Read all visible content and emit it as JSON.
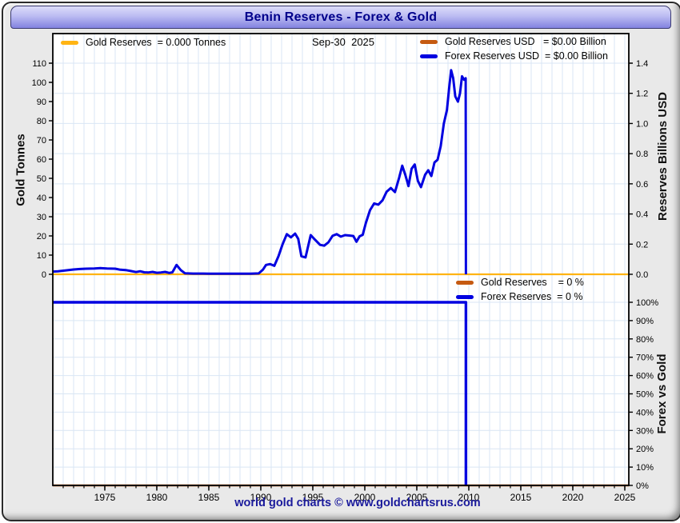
{
  "header": {
    "title": "Benin Reserves - Forex & Gold"
  },
  "footer": {
    "credit": "world gold charts © www.goldchartsrus.com"
  },
  "colors": {
    "forex_blue": "#0000E0",
    "gold": "#FFB414",
    "gold_usd_orange": "#C55A11",
    "title_navy": "#00008B",
    "grid": "#D9E6F4",
    "axis": "#000000",
    "plot_bg": "#FFFFFF",
    "page_bg": "#E9E9E9"
  },
  "chart_data": {
    "type": "line",
    "title": "Benin Reserves - Forex & Gold",
    "as_of_label": "Sep-30  2025",
    "x_axis": {
      "range": [
        1970,
        2025.4
      ],
      "minor_tick_step": 1,
      "major_ticks": [
        {
          "v": 1975,
          "label": "1975"
        },
        {
          "v": 1980,
          "label": "1980"
        },
        {
          "v": 1985,
          "label": "1985"
        },
        {
          "v": 1990,
          "label": "1990"
        },
        {
          "v": 1995,
          "label": "1995"
        },
        {
          "v": 2000,
          "label": "2000"
        },
        {
          "v": 2005,
          "label": "2005"
        },
        {
          "v": 2010,
          "label": "2010"
        },
        {
          "v": 2015,
          "label": "2015"
        },
        {
          "v": 2020,
          "label": "2020"
        },
        {
          "v": 2025,
          "label": "2025"
        }
      ]
    },
    "top_panel": {
      "left_axis": {
        "title": "Gold Tonnes",
        "range": [
          0,
          117
        ],
        "ticks": [
          {
            "v": 0,
            "label": "0"
          },
          {
            "v": 10,
            "label": "10"
          },
          {
            "v": 20,
            "label": "20"
          },
          {
            "v": 30,
            "label": "30"
          },
          {
            "v": 40,
            "label": "40"
          },
          {
            "v": 50,
            "label": "50"
          },
          {
            "v": 60,
            "label": "60"
          },
          {
            "v": 70,
            "label": "70"
          },
          {
            "v": 80,
            "label": "80"
          },
          {
            "v": 90,
            "label": "90"
          },
          {
            "v": 100,
            "label": "100"
          },
          {
            "v": 110,
            "label": "110"
          }
        ]
      },
      "right_axis": {
        "title": "Reserves Billions USD",
        "range": [
          0,
          1.596
        ],
        "ticks": [
          {
            "v": 0.0,
            "label": "0.0"
          },
          {
            "v": 0.2,
            "label": "0.2"
          },
          {
            "v": 0.4,
            "label": "0.4"
          },
          {
            "v": 0.6,
            "label": "0.6"
          },
          {
            "v": 0.8,
            "label": "0.8"
          },
          {
            "v": 1.0,
            "label": "1.0"
          },
          {
            "v": 1.2,
            "label": "1.2"
          },
          {
            "v": 1.4,
            "label": "1.4"
          }
        ]
      },
      "legend_left": {
        "swatch_color": "#FFB414",
        "label": "Gold Reserves  = 0.000 Tonnes"
      },
      "legend_right": [
        {
          "swatch_color": "#C55A11",
          "label": "Gold Reserves USD   = $0.00 Billion"
        },
        {
          "swatch_color": "#0000E0",
          "label": "Forex Reserves USD  = $0.00 Billion"
        }
      ],
      "series": [
        {
          "name": "Gold Reserves USD",
          "color": "#C55A11",
          "width": 2,
          "points": [
            [
              1970,
              0
            ],
            [
              2025.4,
              0
            ]
          ]
        },
        {
          "name": "Gold Reserves Tonnes",
          "color": "#FFB414",
          "width": 2.2,
          "points": [
            [
              1970,
              0
            ],
            [
              2025.4,
              0
            ]
          ]
        },
        {
          "name": "Forex Reserves USD",
          "color": "#0000E0",
          "width": 3,
          "points": [
            [
              1970,
              0.018
            ],
            [
              1970.5,
              0.02
            ],
            [
              1971,
              0.024
            ],
            [
              1971.5,
              0.028
            ],
            [
              1972,
              0.032
            ],
            [
              1972.6,
              0.035
            ],
            [
              1973.2,
              0.037
            ],
            [
              1974,
              0.038
            ],
            [
              1974.6,
              0.041
            ],
            [
              1975.2,
              0.038
            ],
            [
              1976,
              0.037
            ],
            [
              1976.5,
              0.03
            ],
            [
              1977,
              0.028
            ],
            [
              1977.5,
              0.022
            ],
            [
              1978,
              0.015
            ],
            [
              1978.4,
              0.02
            ],
            [
              1978.8,
              0.013
            ],
            [
              1979.2,
              0.012
            ],
            [
              1979.6,
              0.016
            ],
            [
              1980,
              0.01
            ],
            [
              1980.4,
              0.012
            ],
            [
              1980.8,
              0.016
            ],
            [
              1981.2,
              0.009
            ],
            [
              1981.5,
              0.013
            ],
            [
              1981.9,
              0.062
            ],
            [
              1982.3,
              0.028
            ],
            [
              1982.7,
              0.007
            ],
            [
              1983.5,
              0.005
            ],
            [
              1985,
              0.004
            ],
            [
              1987,
              0.004
            ],
            [
              1989,
              0.004
            ],
            [
              1989.8,
              0.006
            ],
            [
              1990.2,
              0.03
            ],
            [
              1990.5,
              0.062
            ],
            [
              1990.9,
              0.068
            ],
            [
              1991.3,
              0.056
            ],
            [
              1991.7,
              0.12
            ],
            [
              1992.1,
              0.2
            ],
            [
              1992.5,
              0.266
            ],
            [
              1992.9,
              0.245
            ],
            [
              1993.3,
              0.27
            ],
            [
              1993.6,
              0.235
            ],
            [
              1993.9,
              0.12
            ],
            [
              1994.3,
              0.112
            ],
            [
              1994.8,
              0.26
            ],
            [
              1995.2,
              0.23
            ],
            [
              1995.7,
              0.195
            ],
            [
              1996.1,
              0.19
            ],
            [
              1996.5,
              0.212
            ],
            [
              1996.9,
              0.255
            ],
            [
              1997.3,
              0.266
            ],
            [
              1997.7,
              0.25
            ],
            [
              1998.1,
              0.26
            ],
            [
              1998.5,
              0.257
            ],
            [
              1998.9,
              0.254
            ],
            [
              1999.2,
              0.216
            ],
            [
              1999.5,
              0.252
            ],
            [
              1999.8,
              0.262
            ],
            [
              2000.1,
              0.34
            ],
            [
              2000.5,
              0.425
            ],
            [
              2000.9,
              0.47
            ],
            [
              2001.3,
              0.462
            ],
            [
              2001.7,
              0.49
            ],
            [
              2002.1,
              0.548
            ],
            [
              2002.5,
              0.572
            ],
            [
              2002.9,
              0.545
            ],
            [
              2003.3,
              0.64
            ],
            [
              2003.6,
              0.72
            ],
            [
              2003.9,
              0.658
            ],
            [
              2004.2,
              0.585
            ],
            [
              2004.5,
              0.7
            ],
            [
              2004.8,
              0.728
            ],
            [
              2005.1,
              0.62
            ],
            [
              2005.4,
              0.578
            ],
            [
              2005.8,
              0.66
            ],
            [
              2006.1,
              0.69
            ],
            [
              2006.4,
              0.652
            ],
            [
              2006.7,
              0.742
            ],
            [
              2007,
              0.76
            ],
            [
              2007.3,
              0.85
            ],
            [
              2007.6,
              1.0
            ],
            [
              2007.9,
              1.09
            ],
            [
              2008.1,
              1.23
            ],
            [
              2008.3,
              1.354
            ],
            [
              2008.5,
              1.3
            ],
            [
              2008.7,
              1.18
            ],
            [
              2008.95,
              1.145
            ],
            [
              2009.15,
              1.2
            ],
            [
              2009.35,
              1.313
            ],
            [
              2009.55,
              1.29
            ],
            [
              2009.7,
              1.3
            ],
            [
              2009.72,
              0
            ]
          ]
        }
      ]
    },
    "bottom_panel": {
      "right_axis": {
        "title": "Forex vs Gold",
        "range": [
          0,
          100
        ],
        "ticks": [
          {
            "v": 0,
            "label": "0%"
          },
          {
            "v": 10,
            "label": "10%"
          },
          {
            "v": 20,
            "label": "20%"
          },
          {
            "v": 30,
            "label": "30%"
          },
          {
            "v": 40,
            "label": "40%"
          },
          {
            "v": 50,
            "label": "50%"
          },
          {
            "v": 60,
            "label": "60%"
          },
          {
            "v": 70,
            "label": "70%"
          },
          {
            "v": 80,
            "label": "80%"
          },
          {
            "v": 90,
            "label": "90%"
          },
          {
            "v": 100,
            "label": "100%"
          }
        ]
      },
      "legend": [
        {
          "swatch_color": "#C55A11",
          "label": "Gold Reserves    = 0 %"
        },
        {
          "swatch_color": "#0000E0",
          "label": "Forex Reserves  = 0 %"
        }
      ],
      "series": [
        {
          "name": "Gold Reserves %",
          "color": "#C55A11",
          "width": 2.4,
          "points": [
            [
              1970,
              0
            ],
            [
              2025.4,
              0
            ]
          ]
        },
        {
          "name": "Forex Reserves %",
          "color": "#0000E0",
          "width": 3.4,
          "points": [
            [
              1970,
              100
            ],
            [
              2009.72,
              100
            ],
            [
              2009.72,
              0
            ]
          ]
        }
      ]
    }
  }
}
